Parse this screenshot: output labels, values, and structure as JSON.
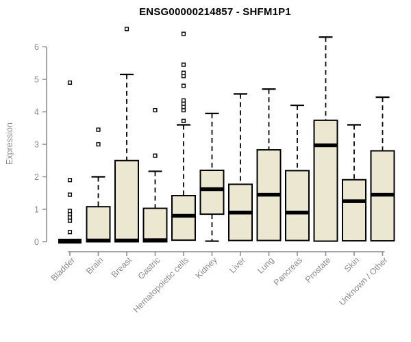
{
  "chart_data": {
    "type": "boxplot",
    "title": "ENSG00000214857 - SHFM1P1",
    "ylabel": "Expression",
    "xlabel": "",
    "ylim": [
      0,
      6
    ],
    "yticks": [
      0,
      1,
      2,
      3,
      4,
      5,
      6
    ],
    "grid": false,
    "legend": "none",
    "colors": {
      "box_fill": "#ECE7D0",
      "box_border": "#000000",
      "median": "#000000",
      "whisker": "#000000",
      "axis": "#878787",
      "label": "#8c8c8c",
      "title": "#000000",
      "background": "#ffffff"
    },
    "categories": [
      "Bladder",
      "Brain",
      "Breast",
      "Gastric",
      "Hematopoietic cells",
      "Kidney",
      "Liver",
      "Lung",
      "Pancreas",
      "Prostate",
      "Skin",
      "Unknown / Other"
    ],
    "series": [
      {
        "name": "Bladder",
        "q1": 0,
        "median": 0.02,
        "q3": 0.04,
        "whisker_low": 0,
        "whisker_high": 0.04,
        "outliers": [
          0.3,
          0.65,
          0.75,
          0.85,
          0.95,
          1.45,
          1.9,
          4.9
        ]
      },
      {
        "name": "Brain",
        "q1": 0,
        "median": 0.04,
        "q3": 1.08,
        "whisker_low": 0,
        "whisker_high": 2.0,
        "outliers": [
          3.0,
          3.45
        ]
      },
      {
        "name": "Breast",
        "q1": 0,
        "median": 0.04,
        "q3": 2.5,
        "whisker_low": 0,
        "whisker_high": 5.15,
        "outliers": [
          6.55
        ]
      },
      {
        "name": "Gastric",
        "q1": 0,
        "median": 0.05,
        "q3": 1.03,
        "whisker_low": 0,
        "whisker_high": 2.17,
        "outliers": [
          2.65,
          4.05
        ]
      },
      {
        "name": "Hematopoietic cells",
        "q1": 0.05,
        "median": 0.8,
        "q3": 1.42,
        "whisker_low": 0.05,
        "whisker_high": 3.6,
        "outliers": [
          3.72,
          4.05,
          4.15,
          4.25,
          4.35,
          4.8,
          5.1,
          5.2,
          5.45,
          6.4
        ]
      },
      {
        "name": "Kidney",
        "q1": 0.85,
        "median": 1.62,
        "q3": 2.2,
        "whisker_low": 0.02,
        "whisker_high": 3.95,
        "outliers": []
      },
      {
        "name": "Liver",
        "q1": 0.04,
        "median": 0.9,
        "q3": 1.77,
        "whisker_low": 0.04,
        "whisker_high": 4.55,
        "outliers": []
      },
      {
        "name": "Lung",
        "q1": 0.04,
        "median": 1.45,
        "q3": 2.83,
        "whisker_low": 0.04,
        "whisker_high": 4.7,
        "outliers": []
      },
      {
        "name": "Pancreas",
        "q1": 0.04,
        "median": 0.9,
        "q3": 2.19,
        "whisker_low": 0.04,
        "whisker_high": 4.2,
        "outliers": []
      },
      {
        "name": "Prostate",
        "q1": 0.02,
        "median": 2.97,
        "q3": 3.74,
        "whisker_low": 0.02,
        "whisker_high": 6.3,
        "outliers": []
      },
      {
        "name": "Skin",
        "q1": 0.03,
        "median": 1.25,
        "q3": 1.91,
        "whisker_low": 0.03,
        "whisker_high": 3.6,
        "outliers": []
      },
      {
        "name": "Unknown / Other",
        "q1": 0.03,
        "median": 1.45,
        "q3": 2.8,
        "whisker_low": 0.03,
        "whisker_high": 4.45,
        "outliers": []
      }
    ]
  }
}
